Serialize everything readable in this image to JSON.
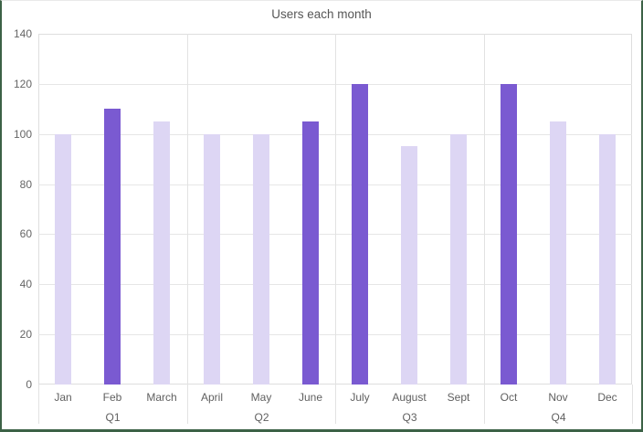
{
  "chart_data": {
    "type": "bar",
    "title": "Users each month",
    "categories": [
      "Jan",
      "Feb",
      "March",
      "April",
      "May",
      "June",
      "July",
      "August",
      "Sept",
      "Oct",
      "Nov",
      "Dec"
    ],
    "values": [
      100,
      110,
      105,
      100,
      100,
      105,
      120,
      95,
      100,
      120,
      105,
      100
    ],
    "highlight": [
      false,
      true,
      false,
      false,
      false,
      true,
      true,
      false,
      false,
      true,
      false,
      false
    ],
    "group_labels": [
      "Q1",
      "Q2",
      "Q3",
      "Q4"
    ],
    "months_per_group": 3,
    "xlabel": "",
    "ylabel": "",
    "ylim": [
      0,
      140
    ],
    "yticks": [
      0,
      20,
      40,
      60,
      80,
      100,
      120,
      140
    ],
    "grid": true,
    "legend_position": "none",
    "bar_color_default": "#DDD6F4",
    "bar_color_highlight": "#7A5AD1"
  },
  "colors": {
    "frame_border": "#3C6246",
    "plot_border": "#DEDEDE",
    "gridline": "#E6E6E6",
    "title_text": "#565656",
    "axis_text": "#666666",
    "background": "#FFFFFF"
  }
}
